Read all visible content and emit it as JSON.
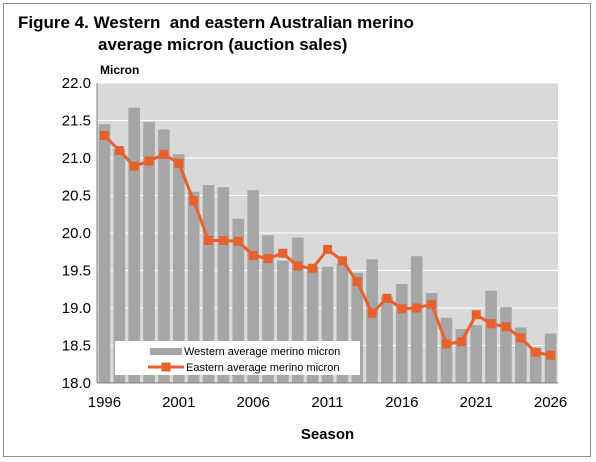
{
  "title_line1": "Figure 4. Western  and eastern Australian merino",
  "title_line2": "average micron (auction sales)",
  "chart_data": {
    "type": "bar+line",
    "title": "Figure 4. Western  and eastern Australian merino average micron (auction sales)",
    "xlabel": "Season",
    "ylabel": "Micron",
    "ylim": [
      18.0,
      22.0
    ],
    "yticks": [
      "18.0",
      "18.5",
      "19.0",
      "19.5",
      "20.0",
      "20.5",
      "21.0",
      "21.5",
      "22.0"
    ],
    "x_tick_labels": [
      "1996",
      "2001",
      "2006",
      "2011",
      "2016",
      "2021",
      "2026"
    ],
    "grid": "horizontal",
    "legend_position": "bottom-left",
    "x": [
      1996,
      1997,
      1998,
      1999,
      2000,
      2001,
      2002,
      2003,
      2004,
      2005,
      2006,
      2007,
      2008,
      2009,
      2010,
      2011,
      2012,
      2013,
      2014,
      2015,
      2016,
      2017,
      2018,
      2019,
      2020,
      2021,
      2022,
      2023,
      2024,
      2025,
      2026
    ],
    "series": [
      {
        "name": "Western average merino micron",
        "type": "bar",
        "color": "#a6a6a6",
        "values": [
          21.45,
          21.12,
          21.67,
          21.48,
          21.38,
          21.05,
          20.55,
          20.64,
          20.61,
          20.19,
          20.57,
          19.97,
          19.63,
          19.94,
          19.55,
          19.55,
          19.59,
          19.47,
          19.65,
          19.15,
          19.32,
          19.69,
          19.2,
          18.87,
          18.72,
          18.77,
          19.23,
          19.01,
          18.74,
          18.47,
          18.66
        ]
      },
      {
        "name": "Eastern average merino micron",
        "type": "line",
        "color": "#e8602c",
        "values": [
          21.3,
          21.1,
          20.89,
          20.96,
          21.05,
          20.93,
          20.43,
          19.9,
          19.9,
          19.89,
          19.7,
          19.66,
          19.73,
          19.56,
          19.53,
          19.78,
          19.63,
          19.35,
          18.93,
          19.13,
          18.99,
          19.0,
          19.05,
          18.52,
          18.55,
          18.91,
          18.79,
          18.75,
          18.6,
          18.41,
          18.37
        ]
      }
    ]
  },
  "colors": {
    "plot_background": "#d9d9d9",
    "gridline": "#ffffff",
    "bar": "#a6a6a6",
    "line": "#e8602c",
    "legend_background": "#ffffff"
  }
}
